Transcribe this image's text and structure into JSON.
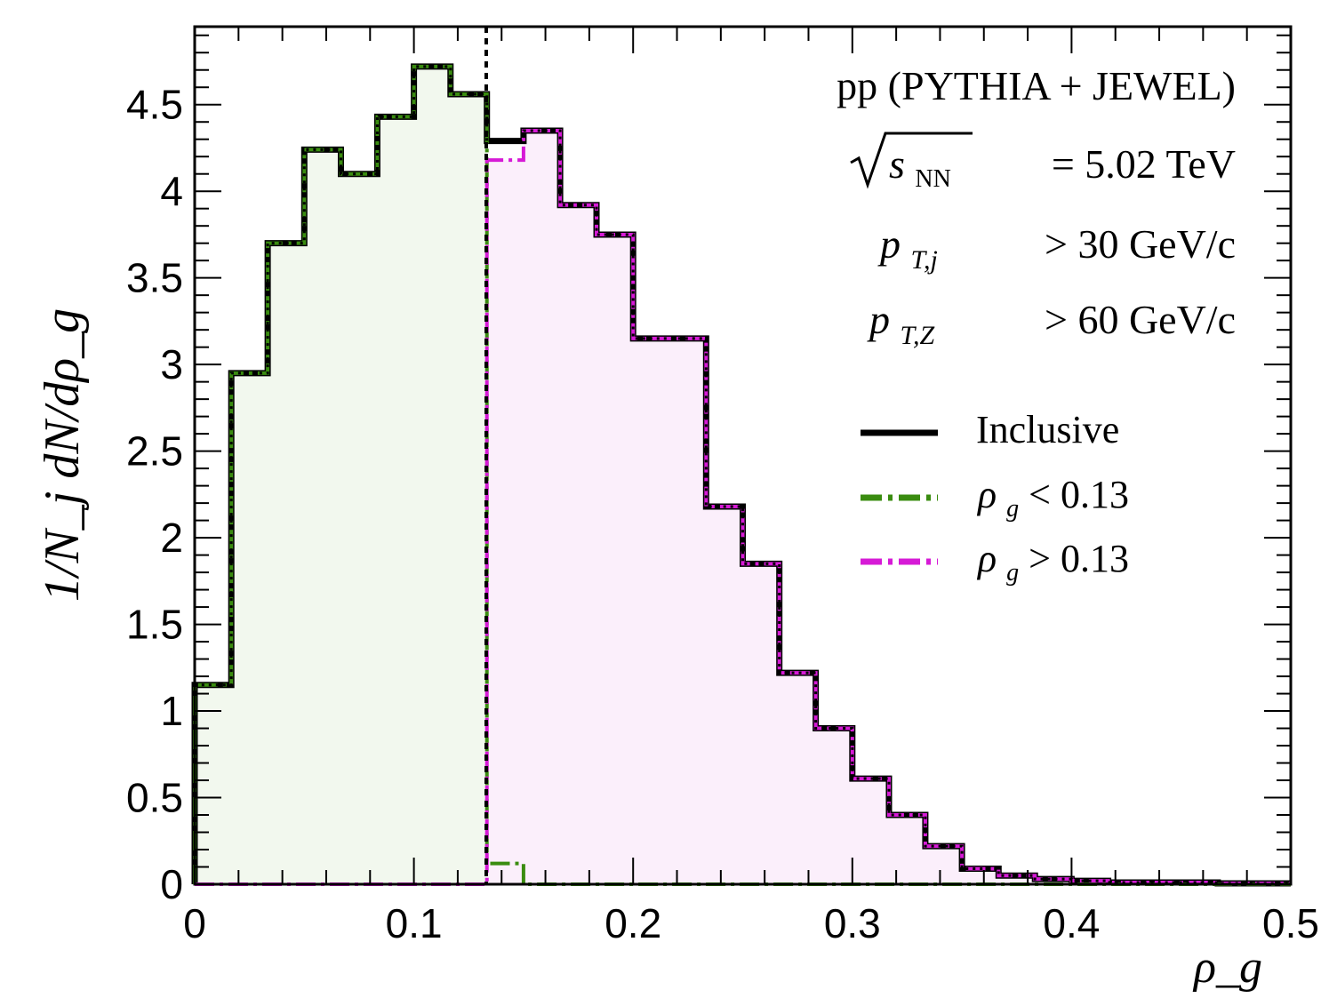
{
  "chart_data": {
    "type": "histogram",
    "xlabel": "ρ_g",
    "ylabel": "1/N_j dN/dρ_g",
    "xlim": [
      0,
      0.5
    ],
    "ylim": [
      0,
      4.95
    ],
    "x_ticks": [
      "0",
      "0.1",
      "0.2",
      "0.3",
      "0.4",
      "0.5"
    ],
    "y_ticks": [
      "0",
      "0.5",
      "1",
      "1.5",
      "2",
      "2.5",
      "3",
      "3.5",
      "4",
      "4.5"
    ],
    "cut_value": 0.133,
    "annotations": {
      "system": "pp (PYTHIA + JEWEL)",
      "energy_lhs": "s",
      "energy_sub": "NN",
      "energy_rhs": "= 5.02 TeV",
      "jet_pt_var": "p",
      "jet_pt_sub": "T,j",
      "jet_pt_cut": "> 30 GeV/c",
      "z_pt_var": "p",
      "z_pt_sub": "T,Z",
      "z_pt_cut": "> 60 GeV/c"
    },
    "series": [
      {
        "name": "Inclusive",
        "color": "#000000",
        "style": "solid",
        "bin_edges": [
          0,
          0.0167,
          0.0333,
          0.05,
          0.0667,
          0.0833,
          0.1,
          0.1167,
          0.1333,
          0.15,
          0.1667,
          0.1833,
          0.2,
          0.2167,
          0.2333,
          0.25,
          0.2667,
          0.2833,
          0.3,
          0.3167,
          0.3333,
          0.35,
          0.3667,
          0.3833,
          0.4,
          0.4167,
          0.4333,
          0.45,
          0.4667,
          0.4833,
          0.5
        ],
        "values": [
          1.15,
          2.95,
          3.7,
          4.24,
          4.1,
          4.43,
          4.72,
          4.56,
          4.29,
          4.35,
          3.92,
          3.75,
          3.15,
          3.15,
          2.18,
          1.85,
          1.22,
          0.9,
          0.61,
          0.4,
          0.22,
          0.09,
          0.05,
          0.03,
          0.02,
          0.01,
          0.01,
          0.01,
          0.005,
          0.005
        ]
      },
      {
        "name": "ρ_g < 0.13",
        "label_var": "ρ",
        "label_sub": "g",
        "label_rest": "< 0.13",
        "color": "#3a8c10",
        "fill": "#f2f8ee",
        "style": "dash-dot",
        "bin_edges": [
          0,
          0.0167,
          0.0333,
          0.05,
          0.0667,
          0.0833,
          0.1,
          0.1167,
          0.1333,
          0.15,
          0.1667,
          0.5
        ],
        "values": [
          1.15,
          2.95,
          3.7,
          4.24,
          4.1,
          4.43,
          4.72,
          4.56,
          0.12,
          0,
          0
        ]
      },
      {
        "name": "ρ_g > 0.13",
        "label_var": "ρ",
        "label_sub": "g",
        "label_rest": "> 0.13",
        "color": "#d61ad6",
        "fill": "#fbeffb",
        "style": "dash-dot",
        "bin_edges": [
          0,
          0.1333,
          0.15,
          0.1667,
          0.1833,
          0.2,
          0.2167,
          0.2333,
          0.25,
          0.2667,
          0.2833,
          0.3,
          0.3167,
          0.3333,
          0.35,
          0.3667,
          0.3833,
          0.4,
          0.4167,
          0.4333,
          0.45,
          0.4667,
          0.4833,
          0.5
        ],
        "values": [
          0,
          4.18,
          4.35,
          3.92,
          3.75,
          3.15,
          3.15,
          2.18,
          1.85,
          1.22,
          0.9,
          0.61,
          0.4,
          0.22,
          0.09,
          0.05,
          0.03,
          0.02,
          0.01,
          0.01,
          0.01,
          0.005,
          0.005
        ]
      }
    ]
  }
}
